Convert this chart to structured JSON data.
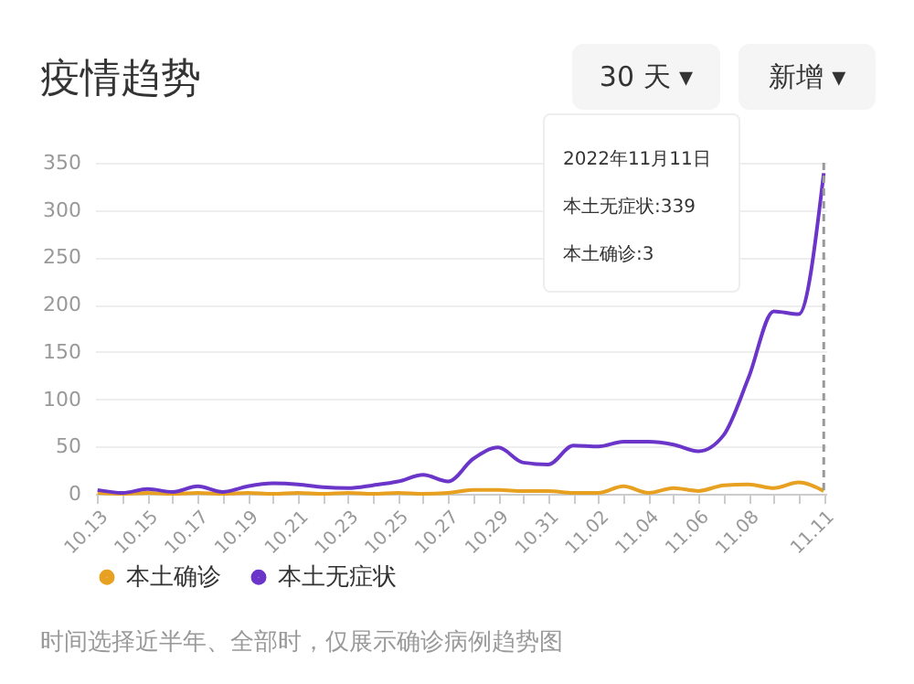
{
  "chart_data": {
    "type": "line",
    "title": "疫情趋势",
    "categories": [
      "10.13",
      null,
      "10.15",
      null,
      "10.17",
      null,
      "10.19",
      null,
      "10.21",
      null,
      "10.23",
      null,
      "10.25",
      null,
      "10.27",
      null,
      "10.29",
      null,
      "10.31",
      null,
      "11.02",
      null,
      "11.04",
      null,
      "11.06",
      null,
      "11.08",
      null,
      null,
      "11.11"
    ],
    "series": [
      {
        "name": "本土确诊",
        "color": "#e8a020",
        "values": [
          1,
          0,
          1,
          0,
          1,
          0,
          1,
          0,
          1,
          0,
          1,
          0,
          1,
          0,
          1,
          4,
          4,
          3,
          3,
          1,
          1,
          8,
          1,
          6,
          3,
          9,
          10,
          6,
          12,
          3
        ]
      },
      {
        "name": "本土无症状",
        "color": "#6a35c8",
        "values": [
          4,
          1,
          5,
          2,
          8,
          2,
          8,
          11,
          10,
          7,
          6,
          9,
          13,
          20,
          13,
          37,
          49,
          33,
          31,
          51,
          50,
          55,
          55,
          52,
          45,
          62,
          123,
          193,
          190,
          339
        ]
      }
    ],
    "ylim": [
      0,
      350
    ],
    "yticks": [
      0,
      50,
      100,
      150,
      200,
      250,
      300,
      350
    ],
    "grid": "y",
    "legend": "bottom",
    "marker": "none",
    "line_style": "solid",
    "ref_lines": [
      {
        "axis": "x",
        "value": "11.11",
        "color": "#999999",
        "line_style": "dashed"
      }
    ],
    "annotations": [
      "30 天 ▾",
      "新增 ▾",
      "2022年11月11日",
      "本土无症状:339",
      "本土确诊:3",
      "时间选择近半年、全部时，仅展示确诊病例趋势图"
    ]
  }
}
